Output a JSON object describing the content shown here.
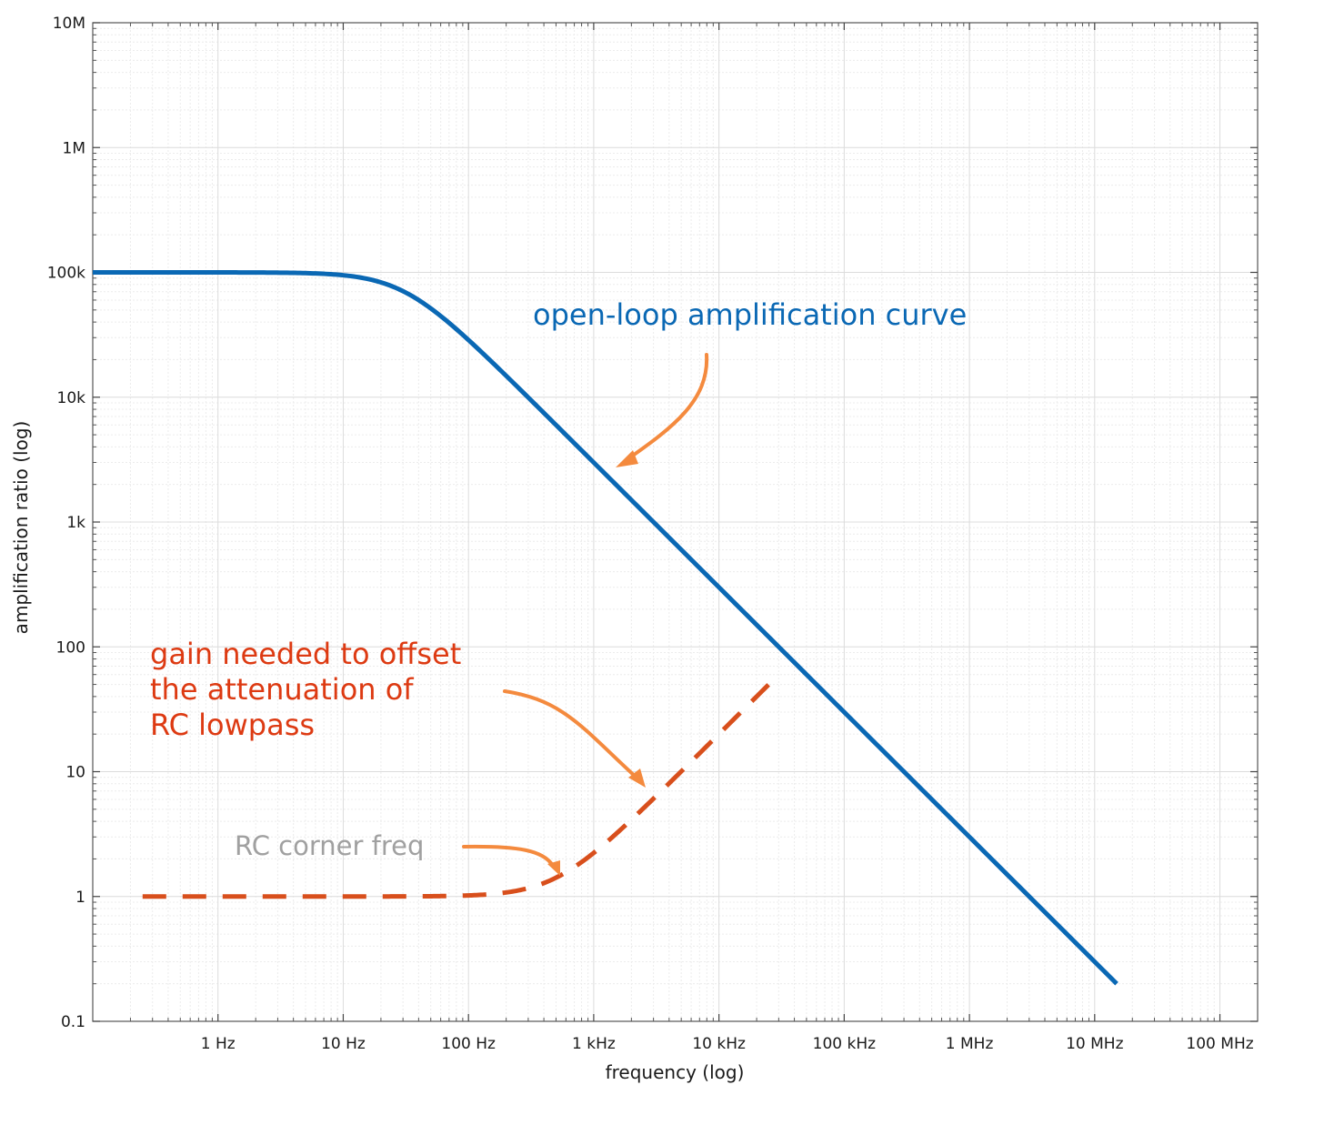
{
  "chart_data": {
    "type": "line",
    "xlabel": "frequency (log)",
    "ylabel": "amplification ratio (log)",
    "xscale": "log",
    "yscale": "log",
    "xlim": [
      0.1,
      200000000
    ],
    "ylim": [
      0.1,
      10000000
    ],
    "grid": true,
    "x_ticks": [
      {
        "value": 1,
        "label": "1 Hz"
      },
      {
        "value": 10,
        "label": "10 Hz"
      },
      {
        "value": 100,
        "label": "100 Hz"
      },
      {
        "value": 1000,
        "label": "1 kHz"
      },
      {
        "value": 10000,
        "label": "10 kHz"
      },
      {
        "value": 100000,
        "label": "100 kHz"
      },
      {
        "value": 1000000,
        "label": "1 MHz"
      },
      {
        "value": 10000000,
        "label": "10 MHz"
      },
      {
        "value": 100000000,
        "label": "100 MHz"
      }
    ],
    "y_ticks": [
      {
        "value": 0.1,
        "label": "0.1"
      },
      {
        "value": 1,
        "label": "1"
      },
      {
        "value": 10,
        "label": "10"
      },
      {
        "value": 100,
        "label": "100"
      },
      {
        "value": 1000,
        "label": "1k"
      },
      {
        "value": 10000,
        "label": "10k"
      },
      {
        "value": 100000,
        "label": "100k"
      },
      {
        "value": 1000000,
        "label": "1M"
      },
      {
        "value": 10000000,
        "label": "10M"
      }
    ],
    "series": [
      {
        "color": "#0a68b4",
        "style": "solid",
        "model": "first-order lowpass",
        "dc_gain": 100000,
        "corner_hz": 30,
        "x_range": [
          0.1,
          15000000
        ]
      },
      {
        "color": "#d84f1c",
        "style": "dashed",
        "model": "first-order highpass inverse",
        "dc_gain": 1,
        "corner_hz": 500,
        "x_range": [
          0.25,
          28000
        ]
      }
    ],
    "annotations": [
      {
        "text": "open-loop amplification curve",
        "color": "#0a68b4",
        "lines": [
          "open-loop amplification curve"
        ]
      },
      {
        "text": "gain needed to offset the attenuation of RC lowpass",
        "color": "#dd3a12",
        "lines": [
          "gain needed to offset",
          "the attenuation of",
          "RC lowpass"
        ]
      },
      {
        "text": "RC corner freq",
        "color": "#a0a0a0",
        "lines": [
          "RC corner freq"
        ]
      }
    ],
    "arrow_color": "#f48a3e"
  }
}
